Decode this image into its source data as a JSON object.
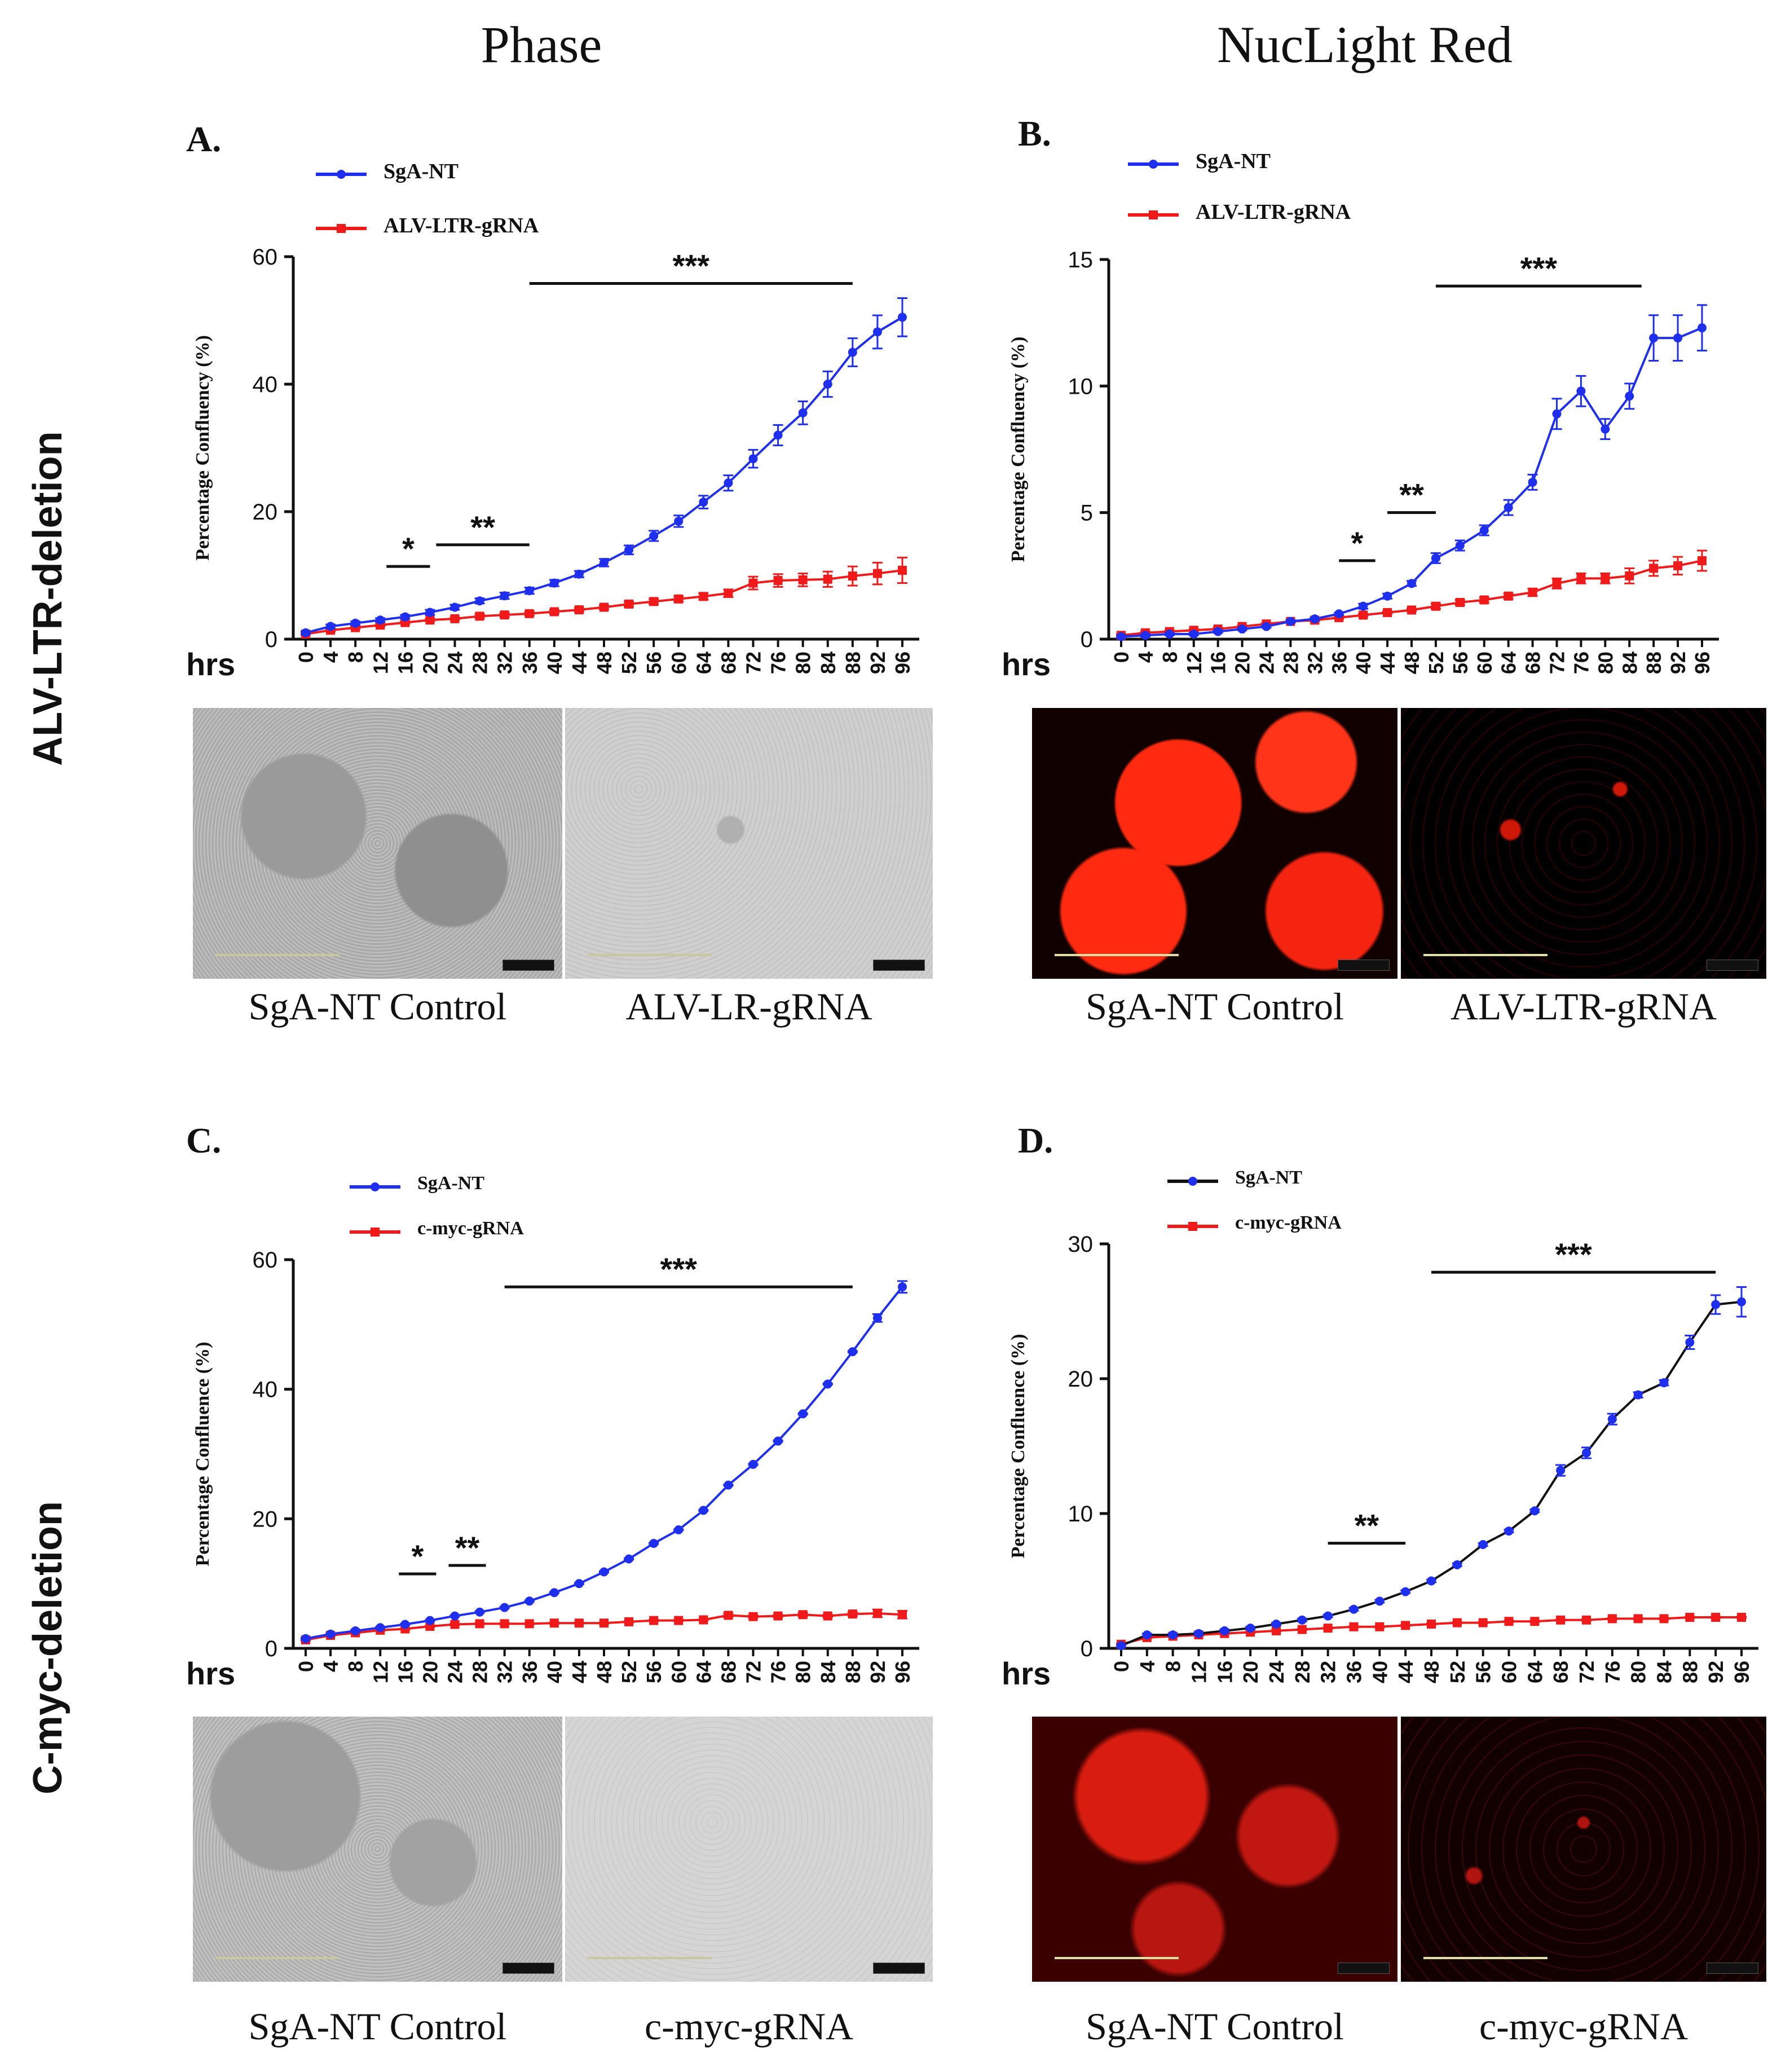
{
  "column_headers": [
    "Phase",
    "NucLight Red"
  ],
  "row_headers": [
    "ALV-LTR-deletion",
    "C-myc-deletion"
  ],
  "colors": {
    "blue": "#1f2ff0",
    "red": "#f01a1a",
    "black": "#111111"
  },
  "captions": {
    "A_left": "SgA-NT Control",
    "A_right": "ALV-LR-gRNA",
    "B_left": "SgA-NT Control",
    "B_right": "ALV-LTR-gRNA",
    "C_left": "SgA-NT Control",
    "C_right": "c-myc-gRNA",
    "D_left": "SgA-NT Control",
    "D_right": "c-myc-gRNA"
  },
  "chart_data": [
    {
      "panel": "A.",
      "type": "line",
      "ylabel": "Percentage Confluency (%)",
      "xlabel": "hrs",
      "ylim": [
        0,
        60
      ],
      "yticks": [
        0,
        20,
        40,
        60
      ],
      "x": [
        0,
        4,
        8,
        12,
        16,
        20,
        24,
        28,
        32,
        36,
        40,
        44,
        48,
        52,
        56,
        60,
        64,
        68,
        72,
        76,
        80,
        84,
        88,
        92,
        96
      ],
      "series": [
        {
          "name": "SgA-NT",
          "color": "#1f2ff0",
          "marker": "circle",
          "values": [
            1.0,
            2.0,
            2.5,
            3.0,
            3.5,
            4.2,
            5.0,
            6.0,
            6.8,
            7.6,
            8.8,
            10.2,
            12.0,
            14.0,
            16.2,
            18.5,
            21.5,
            24.5,
            28.3,
            32.0,
            35.5,
            40.0,
            45.0,
            48.2,
            50.5
          ],
          "errors": [
            0.2,
            0.3,
            0.3,
            0.3,
            0.3,
            0.4,
            0.4,
            0.4,
            0.5,
            0.5,
            0.5,
            0.5,
            0.6,
            0.7,
            0.8,
            0.9,
            1.0,
            1.2,
            1.4,
            1.6,
            1.8,
            2.0,
            2.2,
            2.6,
            3.0
          ]
        },
        {
          "name": "ALV-LTR-gRNA",
          "color": "#f01a1a",
          "marker": "square",
          "values": [
            0.8,
            1.4,
            1.8,
            2.2,
            2.6,
            3.0,
            3.2,
            3.6,
            3.8,
            4.0,
            4.3,
            4.6,
            5.0,
            5.5,
            5.9,
            6.3,
            6.7,
            7.2,
            8.8,
            9.2,
            9.3,
            9.4,
            9.9,
            10.3,
            10.8
          ],
          "errors": [
            0.1,
            0.2,
            0.2,
            0.2,
            0.2,
            0.2,
            0.2,
            0.3,
            0.3,
            0.3,
            0.3,
            0.3,
            0.3,
            0.4,
            0.4,
            0.4,
            0.5,
            0.6,
            1.0,
            1.0,
            1.0,
            1.2,
            1.5,
            1.7,
            2.0
          ]
        }
      ],
      "significance": [
        {
          "label": "*",
          "x_range": [
            13,
            20
          ]
        },
        {
          "label": "**",
          "x_range": [
            21,
            36
          ]
        },
        {
          "label": "***",
          "x_range": [
            36,
            88
          ]
        }
      ]
    },
    {
      "panel": "B.",
      "type": "line",
      "ylabel": "Percentage Confluency (%)",
      "xlabel": "hrs",
      "ylim": [
        0,
        15
      ],
      "yticks": [
        0,
        5,
        10,
        15
      ],
      "x": [
        0,
        4,
        8,
        12,
        16,
        20,
        24,
        28,
        32,
        36,
        40,
        44,
        48,
        52,
        56,
        60,
        64,
        68,
        72,
        76,
        80,
        84,
        88,
        92,
        96
      ],
      "series": [
        {
          "name": "SgA-NT",
          "color": "#1f2ff0",
          "marker": "circle",
          "values": [
            0.1,
            0.15,
            0.2,
            0.2,
            0.3,
            0.4,
            0.5,
            0.7,
            0.8,
            1.0,
            1.3,
            1.7,
            2.2,
            3.2,
            3.7,
            4.3,
            5.2,
            6.2,
            8.9,
            9.8,
            8.3,
            9.6,
            11.9,
            11.9,
            12.3
          ],
          "errors": [
            0.05,
            0.05,
            0.05,
            0.05,
            0.05,
            0.05,
            0.05,
            0.05,
            0.05,
            0.05,
            0.1,
            0.1,
            0.1,
            0.2,
            0.2,
            0.2,
            0.3,
            0.3,
            0.6,
            0.6,
            0.4,
            0.5,
            0.9,
            0.9,
            0.9
          ]
        },
        {
          "name": "ALV-LTR-gRNA",
          "color": "#f01a1a",
          "marker": "square",
          "values": [
            0.15,
            0.25,
            0.3,
            0.35,
            0.4,
            0.5,
            0.6,
            0.7,
            0.75,
            0.85,
            0.95,
            1.05,
            1.15,
            1.3,
            1.45,
            1.55,
            1.7,
            1.85,
            2.2,
            2.4,
            2.4,
            2.5,
            2.8,
            2.9,
            3.1
          ],
          "errors": [
            0.05,
            0.05,
            0.05,
            0.05,
            0.05,
            0.05,
            0.05,
            0.05,
            0.05,
            0.05,
            0.05,
            0.05,
            0.05,
            0.1,
            0.1,
            0.1,
            0.1,
            0.15,
            0.2,
            0.2,
            0.2,
            0.3,
            0.3,
            0.35,
            0.4
          ]
        }
      ],
      "significance": [
        {
          "label": "*",
          "x_range": [
            36,
            42
          ]
        },
        {
          "label": "**",
          "x_range": [
            44,
            52
          ]
        },
        {
          "label": "***",
          "x_range": [
            52,
            86
          ]
        }
      ]
    },
    {
      "panel": "C.",
      "type": "line",
      "ylabel": "Percentage Confluence (%)",
      "xlabel": "hrs",
      "ylim": [
        0,
        60
      ],
      "yticks": [
        0,
        20,
        40,
        60
      ],
      "x": [
        0,
        4,
        8,
        12,
        16,
        20,
        24,
        28,
        32,
        36,
        40,
        44,
        48,
        52,
        56,
        60,
        64,
        68,
        72,
        76,
        80,
        84,
        88,
        92,
        96
      ],
      "series": [
        {
          "name": "SgA-NT",
          "color": "#1f2ff0",
          "marker": "circle",
          "values": [
            1.5,
            2.2,
            2.7,
            3.2,
            3.7,
            4.3,
            5.0,
            5.6,
            6.3,
            7.3,
            8.6,
            10.0,
            11.8,
            13.8,
            16.2,
            18.3,
            21.3,
            25.2,
            28.4,
            32.0,
            36.2,
            40.8,
            45.8,
            51.0,
            55.8
          ],
          "errors": [
            0.1,
            0.1,
            0.1,
            0.1,
            0.1,
            0.1,
            0.1,
            0.1,
            0.1,
            0.1,
            0.1,
            0.1,
            0.1,
            0.1,
            0.1,
            0.1,
            0.1,
            0.1,
            0.1,
            0.1,
            0.1,
            0.1,
            0.1,
            0.6,
            0.9
          ]
        },
        {
          "name": "c-myc-gRNA",
          "color": "#f01a1a",
          "marker": "square",
          "values": [
            1.3,
            2.0,
            2.4,
            2.8,
            3.0,
            3.4,
            3.7,
            3.8,
            3.8,
            3.8,
            3.9,
            3.9,
            3.9,
            4.1,
            4.3,
            4.3,
            4.4,
            5.1,
            4.9,
            5.0,
            5.2,
            5.0,
            5.3,
            5.4,
            5.2
          ],
          "errors": [
            0.1,
            0.1,
            0.1,
            0.1,
            0.1,
            0.1,
            0.1,
            0.1,
            0.1,
            0.1,
            0.1,
            0.1,
            0.1,
            0.1,
            0.1,
            0.1,
            0.1,
            0.3,
            0.2,
            0.2,
            0.3,
            0.2,
            0.3,
            0.6,
            0.6
          ]
        }
      ],
      "significance": [
        {
          "label": "*",
          "x_range": [
            15,
            21
          ]
        },
        {
          "label": "**",
          "x_range": [
            23,
            29
          ]
        },
        {
          "label": "***",
          "x_range": [
            32,
            88
          ]
        }
      ]
    },
    {
      "panel": "D.",
      "type": "line",
      "ylabel": "Percentage Confluence (%)",
      "xlabel": "hrs",
      "ylim": [
        0,
        30
      ],
      "yticks": [
        0,
        10,
        20,
        30
      ],
      "x": [
        0,
        4,
        8,
        12,
        16,
        20,
        24,
        28,
        32,
        36,
        40,
        44,
        48,
        52,
        56,
        60,
        64,
        68,
        72,
        76,
        80,
        84,
        88,
        92,
        96
      ],
      "series": [
        {
          "name": "SgA-NT",
          "color": "#111111",
          "marker": "circle",
          "values": [
            0.2,
            1.0,
            1.0,
            1.1,
            1.3,
            1.5,
            1.8,
            2.1,
            2.4,
            2.9,
            3.5,
            4.2,
            5.0,
            6.2,
            7.7,
            8.7,
            10.2,
            13.2,
            14.5,
            17.0,
            18.8,
            19.7,
            22.7,
            25.5,
            25.7
          ],
          "errors": [
            0.1,
            0.1,
            0.1,
            0.1,
            0.1,
            0.1,
            0.1,
            0.1,
            0.1,
            0.1,
            0.1,
            0.1,
            0.1,
            0.1,
            0.1,
            0.1,
            0.1,
            0.4,
            0.4,
            0.4,
            0.2,
            0.2,
            0.5,
            0.7,
            1.1
          ]
        },
        {
          "name": "c-myc-gRNA",
          "color": "#f01a1a",
          "marker": "square",
          "values": [
            0.3,
            0.8,
            0.9,
            1.0,
            1.1,
            1.2,
            1.3,
            1.4,
            1.5,
            1.6,
            1.6,
            1.7,
            1.8,
            1.9,
            1.9,
            2.0,
            2.0,
            2.1,
            2.1,
            2.2,
            2.2,
            2.2,
            2.3,
            2.3,
            2.3
          ],
          "errors": [
            0.05,
            0.05,
            0.05,
            0.05,
            0.05,
            0.05,
            0.05,
            0.05,
            0.05,
            0.05,
            0.05,
            0.05,
            0.05,
            0.05,
            0.05,
            0.05,
            0.05,
            0.05,
            0.05,
            0.05,
            0.05,
            0.05,
            0.05,
            0.05,
            0.05
          ]
        }
      ],
      "significance": [
        {
          "label": "**",
          "x_range": [
            32,
            44
          ]
        },
        {
          "label": "***",
          "x_range": [
            48,
            92
          ]
        }
      ]
    }
  ]
}
